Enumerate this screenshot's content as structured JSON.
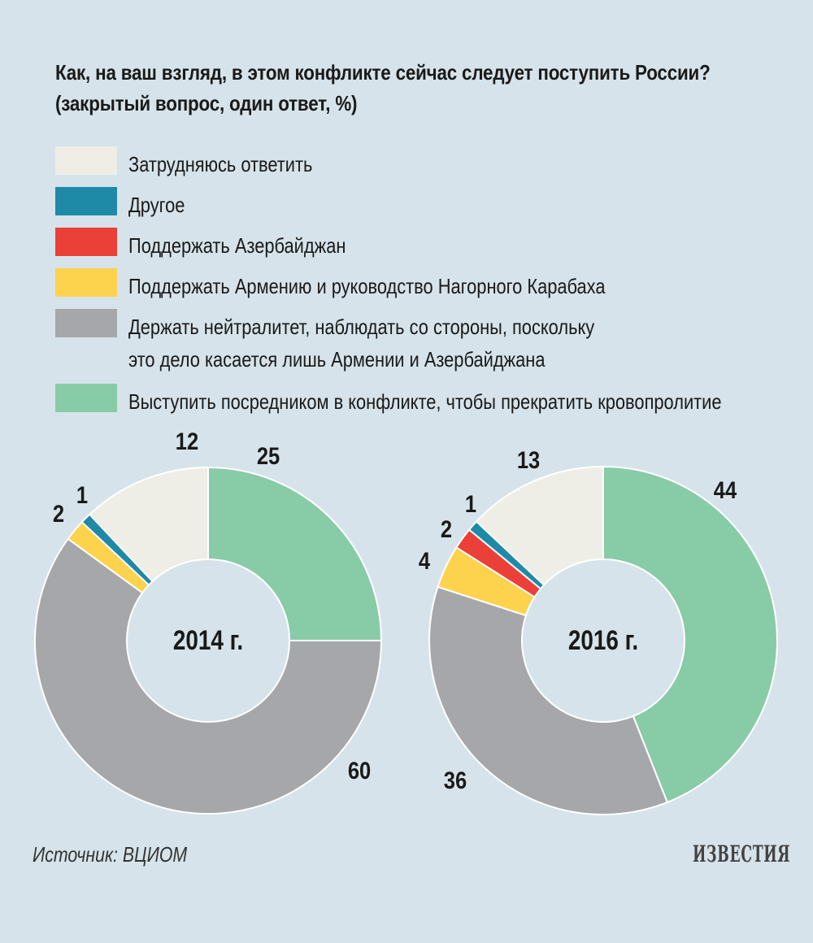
{
  "title": {
    "line1": "Как, на ваш взгляд, в этом конфликте сейчас следует поступить России?",
    "line2": "(закрытый вопрос, один ответ, %)"
  },
  "legend": [
    {
      "label": "Затрудняюсь ответить",
      "color": "#eeeee6"
    },
    {
      "label": "Другое",
      "color": "#1f8aa8"
    },
    {
      "label": "Поддержать Азербайджан",
      "color": "#ea4038"
    },
    {
      "label": "Поддержать Армению и руководство Нагорного Карабаха",
      "color": "#fdd24d"
    },
    {
      "label": "Держать нейтралитет, наблюдать со стороны, поскольку\nэто дело касается лишь Армении и Азербайджана",
      "color": "#a6a7aa"
    },
    {
      "label": "Выступить посредником в конфликте, чтобы прекратить кровопролитие",
      "color": "#88cba7"
    }
  ],
  "chart_data": [
    {
      "type": "pie",
      "center_label": "2014 г.",
      "labels": [
        "Выступить посредником в конфликте, чтобы прекратить кровопролитие",
        "Держать нейтралитет, наблюдать со стороны, поскольку это дело касается лишь Армении и Азербайджана",
        "Поддержать Армению и руководство Нагорного Карабаха",
        "Поддержать Азербайджан",
        "Другое",
        "Затрудняюсь ответить"
      ],
      "values": [
        25,
        60,
        2,
        0,
        1,
        12
      ],
      "value_labels": [
        "25",
        "60",
        "2",
        "",
        "1",
        "12"
      ]
    },
    {
      "type": "pie",
      "center_label": "2016 г.",
      "labels": [
        "Выступить посредником в конфликте, чтобы прекратить кровопролитие",
        "Держать нейтралитет, наблюдать со стороны, поскольку это дело касается лишь Армении и Азербайджана",
        "Поддержать Армению и руководство Нагорного Карабаха",
        "Поддержать Азербайджан",
        "Другое",
        "Затрудняюсь ответить"
      ],
      "values": [
        44,
        36,
        4,
        2,
        1,
        13
      ],
      "value_labels": [
        "44",
        "36",
        "4",
        "2",
        "1",
        "13"
      ]
    }
  ],
  "source": "Источник: ВЦИОМ",
  "logo_text": "ИЗВЕСТИЯ"
}
